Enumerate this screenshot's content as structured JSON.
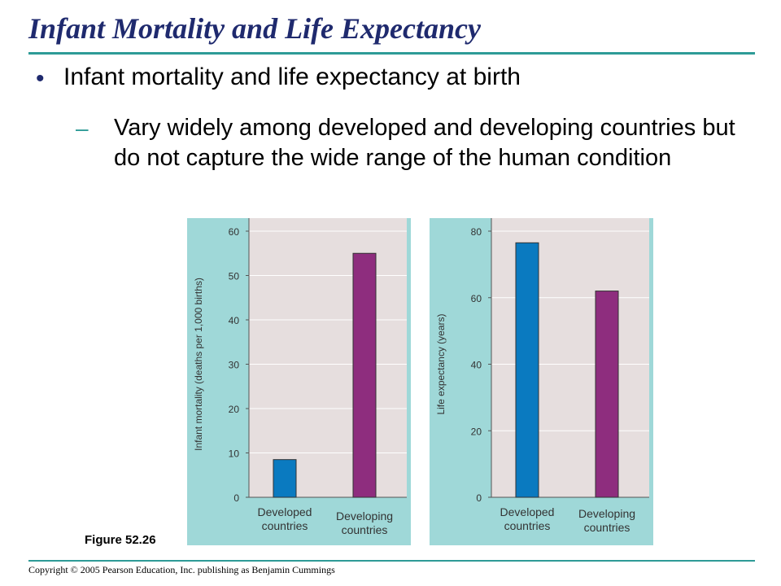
{
  "slide": {
    "title": "Infant Mortality and Life Expectancy",
    "bullet": "Infant mortality and life expectancy at birth",
    "subbullet": "Vary widely among developed and developing countries but do not capture the wide range of the human condition",
    "figure_label": "Figure 52.26",
    "copyright": "Copyright © 2005 Pearson Education, Inc. publishing as Benjamin Cummings"
  },
  "colors": {
    "title": "#1f2a6e",
    "accent": "#2e9b97",
    "panel": "#9fd8d8",
    "plot_bg": "#e6dede",
    "developed": "#0a7ac0",
    "developing": "#8e2d7e"
  },
  "chart_data": [
    {
      "type": "bar",
      "categories": [
        "Developed countries",
        "Developing countries"
      ],
      "category_lines": [
        [
          "Developed",
          "countries"
        ],
        [
          "Developing",
          "countries"
        ]
      ],
      "values": [
        8.5,
        55
      ],
      "ylabel": "Infant mortality (deaths per 1,000 births)",
      "ylim": [
        0,
        60
      ],
      "yticks": [
        0,
        10,
        20,
        30,
        40,
        50,
        60
      ],
      "grid": true
    },
    {
      "type": "bar",
      "categories": [
        "Developed countries",
        "Developing countries"
      ],
      "category_lines": [
        [
          "Developed",
          "countries"
        ],
        [
          "Developing",
          "countries"
        ]
      ],
      "values": [
        76.5,
        62
      ],
      "ylabel": "Life expectancy (years)",
      "ylim": [
        0,
        80
      ],
      "yticks": [
        0,
        20,
        40,
        60,
        80
      ],
      "grid": true
    }
  ]
}
